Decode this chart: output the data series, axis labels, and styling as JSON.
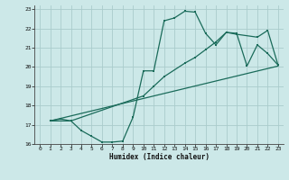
{
  "xlabel": "Humidex (Indice chaleur)",
  "bg_color": "#cce8e8",
  "grid_color": "#aacccc",
  "line_color": "#1a6b5a",
  "xlim": [
    -0.5,
    23.5
  ],
  "ylim": [
    16,
    23.2
  ],
  "xticks": [
    0,
    1,
    2,
    3,
    4,
    5,
    6,
    7,
    8,
    9,
    10,
    11,
    12,
    13,
    14,
    15,
    16,
    17,
    18,
    19,
    20,
    21,
    22,
    23
  ],
  "yticks": [
    16,
    17,
    18,
    19,
    20,
    21,
    22,
    23
  ],
  "line1_x": [
    1,
    2,
    3,
    4,
    5,
    6,
    7,
    8,
    9,
    10,
    11,
    12,
    13,
    14,
    15,
    16,
    17,
    18,
    19,
    20,
    21,
    22,
    23
  ],
  "line1_y": [
    17.2,
    17.3,
    17.2,
    16.7,
    16.4,
    16.1,
    16.1,
    16.15,
    17.4,
    19.8,
    19.8,
    22.4,
    22.55,
    22.9,
    22.85,
    21.75,
    21.15,
    21.8,
    21.75,
    20.05,
    21.15,
    20.7,
    20.1
  ],
  "line2_x": [
    1,
    3,
    10,
    11,
    12,
    14,
    15,
    16,
    17,
    18,
    19,
    21,
    22,
    23
  ],
  "line2_y": [
    17.2,
    17.2,
    18.5,
    19.0,
    19.5,
    20.2,
    20.5,
    20.9,
    21.3,
    21.8,
    21.7,
    21.55,
    21.9,
    20.1
  ],
  "line3_x": [
    1,
    23
  ],
  "line3_y": [
    17.2,
    20.05
  ]
}
